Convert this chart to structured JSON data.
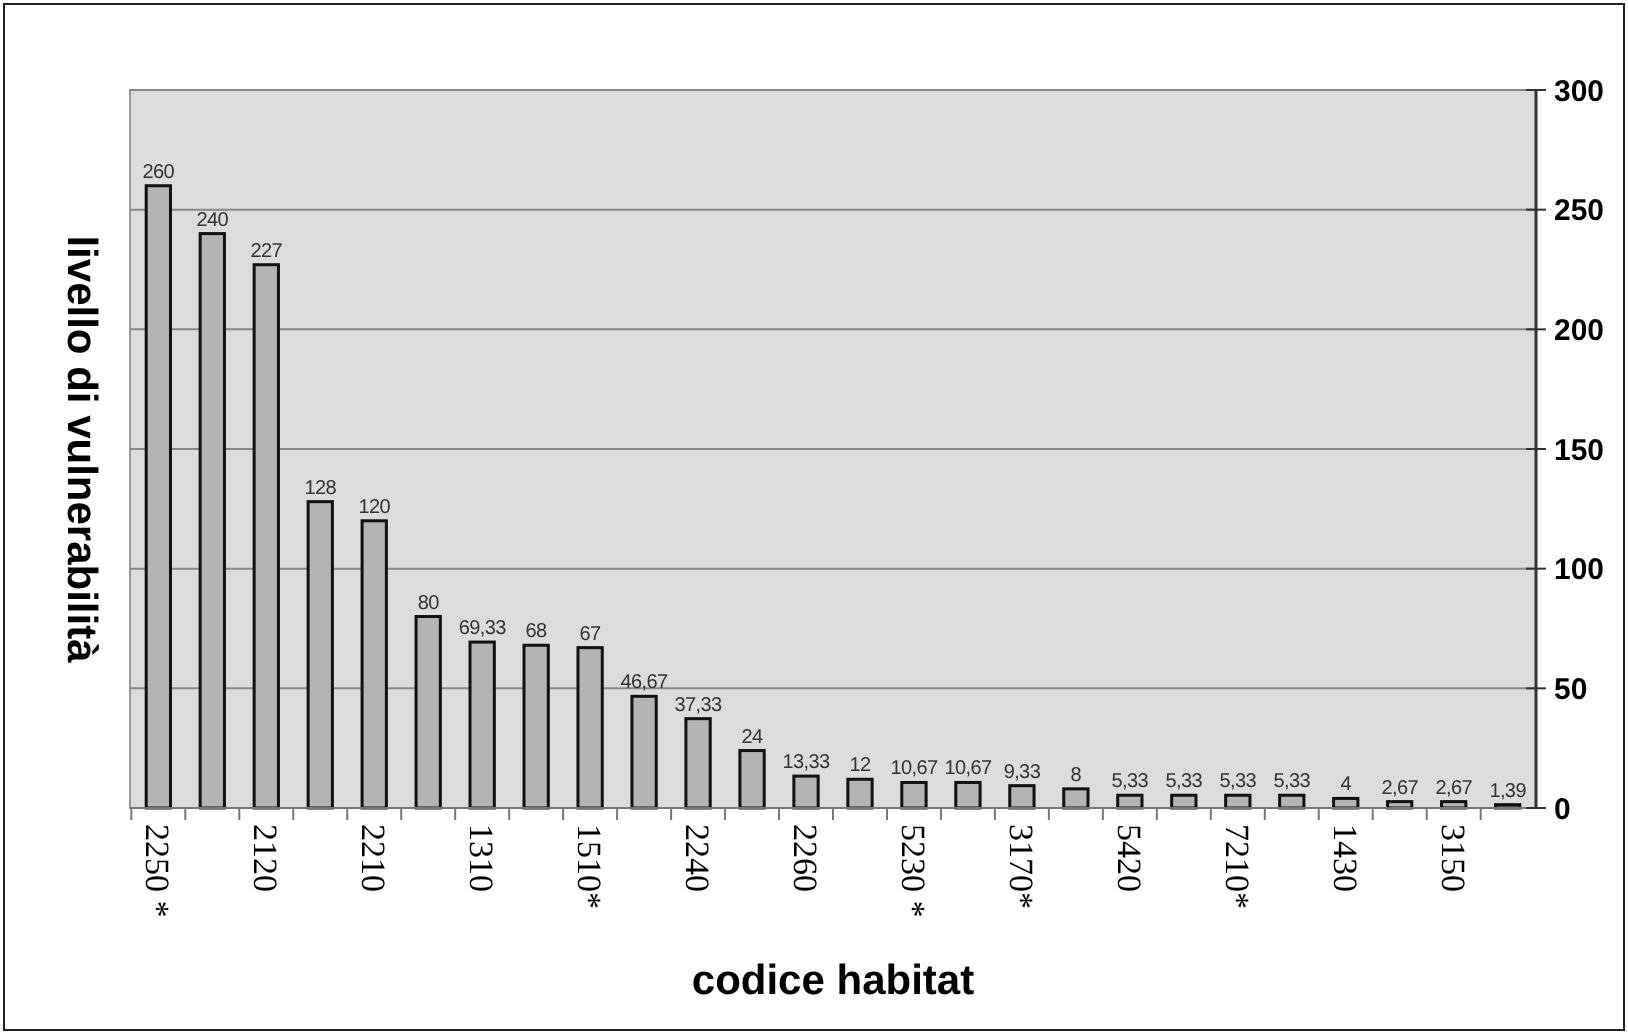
{
  "chart_data": {
    "type": "bar",
    "xlabel": "codice habitat",
    "ylabel": "livello di vulnerabilità",
    "categories": [
      "2250 *",
      null,
      "2120",
      null,
      "2210",
      null,
      "1310",
      null,
      "1510*",
      null,
      "2240",
      null,
      "2260",
      null,
      "5230 *",
      null,
      "3170*",
      null,
      "5420",
      null,
      "7210*",
      null,
      "1430",
      null,
      "3150",
      null
    ],
    "values": [
      260,
      240,
      227,
      128,
      120,
      80,
      69.33,
      68,
      67,
      46.67,
      37.33,
      24,
      13.33,
      12,
      10.67,
      10.67,
      9.33,
      8,
      5.33,
      5.33,
      5.33,
      5.33,
      4,
      2.67,
      2.67,
      1.39
    ],
    "value_labels": [
      "260",
      "240",
      "227",
      "128",
      "120",
      "80",
      "69,33",
      "68",
      "67",
      "46,67",
      "37,33",
      "24",
      "13,33",
      "12",
      "10,67",
      "10,67",
      "9,33",
      "8",
      "5,33",
      "5,33",
      "5,33",
      "5,33",
      "4",
      "2,67",
      "2,67",
      "1,39"
    ],
    "color": "#b4b4b4",
    "ylim": [
      0,
      300
    ],
    "yticks": [
      0,
      50,
      100,
      150,
      200,
      250,
      300
    ],
    "grid": "y"
  }
}
